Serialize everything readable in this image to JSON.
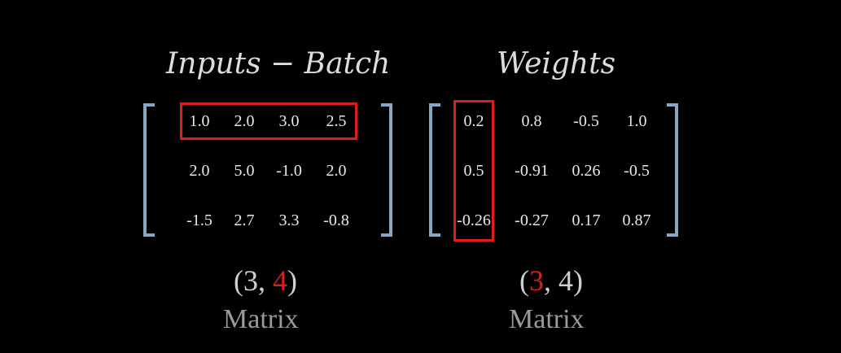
{
  "inputs": {
    "title": "Inputs − Batch",
    "rows": [
      [
        "1.0",
        "2.0",
        "3.0",
        "2.5"
      ],
      [
        "2.0",
        "5.0",
        "-1.0",
        "2.0"
      ],
      [
        "-1.5",
        "2.7",
        "3.3",
        "-0.8"
      ]
    ],
    "shape": {
      "open": "(",
      "first": "3",
      "sep": ", ",
      "second": "4",
      "close": ")"
    },
    "label": "Matrix",
    "highlight": "row 1"
  },
  "weights": {
    "title": "Weights",
    "rows": [
      [
        "0.2",
        "0.8",
        "-0.5",
        "1.0"
      ],
      [
        "0.5",
        "-0.91",
        "0.26",
        "-0.5"
      ],
      [
        "-0.26",
        "-0.27",
        "0.17",
        "0.87"
      ]
    ],
    "shape": {
      "open": "(",
      "first": "3",
      "sep": ", ",
      "second": "4",
      "close": ")"
    },
    "label": "Matrix",
    "highlight": "column 1"
  },
  "colors": {
    "background": "#000000",
    "bracket": "#8aa6c4",
    "highlight": "#e01b1b",
    "accent_red": "#d41f1f"
  }
}
